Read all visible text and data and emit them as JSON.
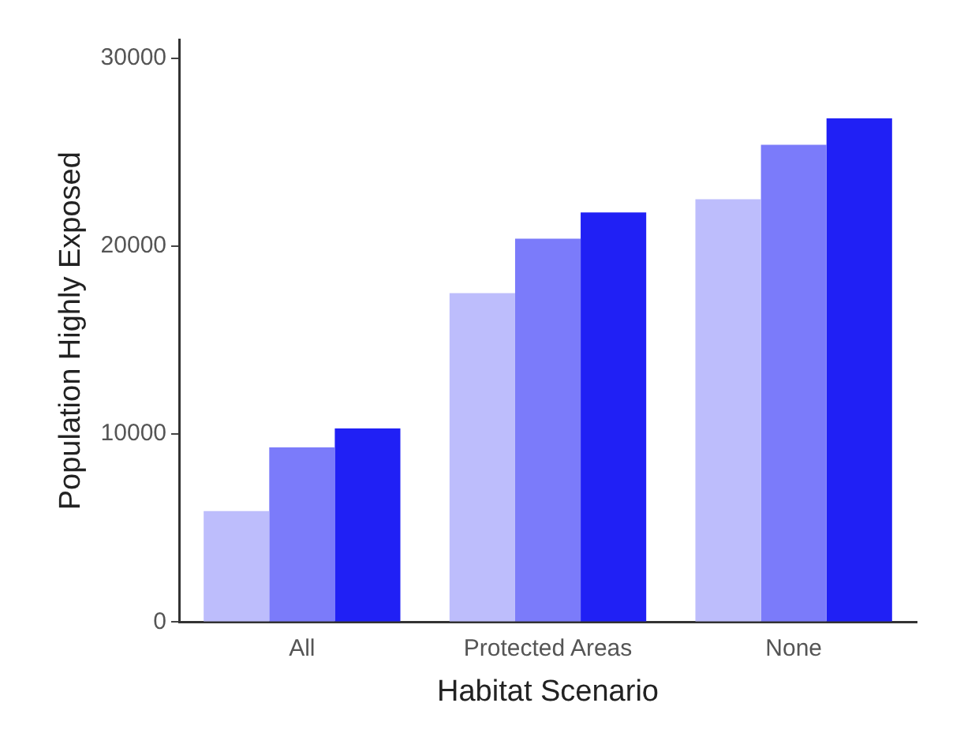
{
  "chart_data": {
    "type": "bar",
    "xlabel": "Habitat Scenario",
    "ylabel": "Population Highly Exposed",
    "categories": [
      "All",
      "Protected Areas",
      "None"
    ],
    "series": [
      {
        "color": "#bdbdfc",
        "values": [
          5900,
          17500,
          22500
        ]
      },
      {
        "color": "#7b7bfa",
        "values": [
          9300,
          20400,
          25400
        ]
      },
      {
        "color": "#2020f5",
        "values": [
          10300,
          21800,
          26800
        ]
      }
    ],
    "ylim": [
      0,
      31000
    ],
    "yticks": [
      0,
      10000,
      20000,
      30000
    ],
    "grid": false,
    "legend": false
  }
}
